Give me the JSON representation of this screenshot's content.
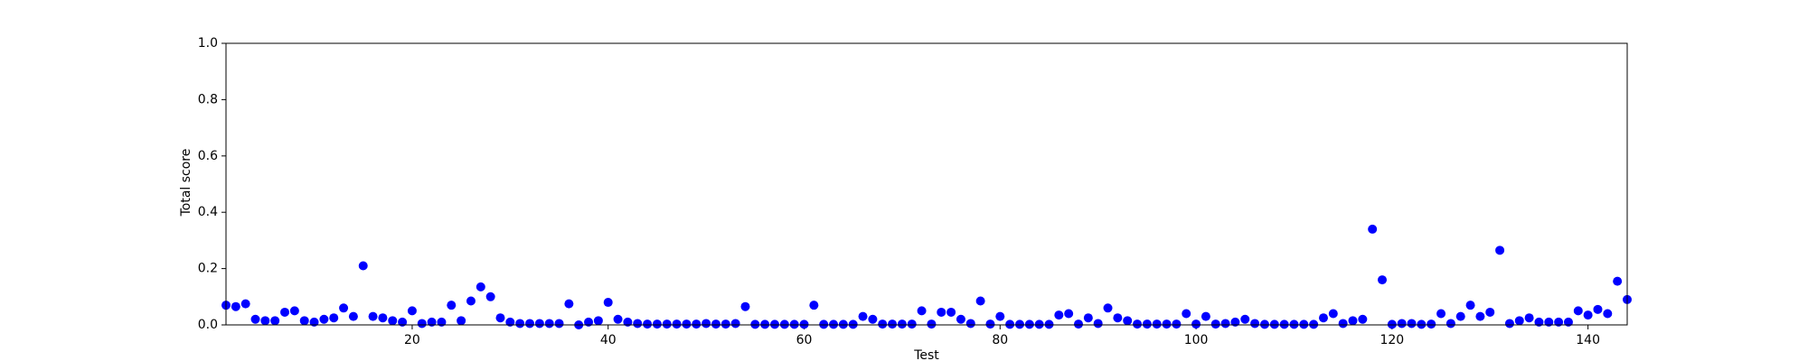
{
  "chart_data": {
    "type": "scatter",
    "xlabel": "Test",
    "ylabel": "Total score",
    "x": [
      1,
      2,
      3,
      4,
      5,
      6,
      7,
      8,
      9,
      10,
      11,
      12,
      13,
      14,
      15,
      16,
      17,
      18,
      19,
      20,
      21,
      22,
      23,
      24,
      25,
      26,
      27,
      28,
      29,
      30,
      31,
      32,
      33,
      34,
      35,
      36,
      37,
      38,
      39,
      40,
      41,
      42,
      43,
      44,
      45,
      46,
      47,
      48,
      49,
      50,
      51,
      52,
      53,
      54,
      55,
      56,
      57,
      58,
      59,
      60,
      61,
      62,
      63,
      64,
      65,
      66,
      67,
      68,
      69,
      70,
      71,
      72,
      73,
      74,
      75,
      76,
      77,
      78,
      79,
      80,
      81,
      82,
      83,
      84,
      85,
      86,
      87,
      88,
      89,
      90,
      91,
      92,
      93,
      94,
      95,
      96,
      97,
      98,
      99,
      100,
      101,
      102,
      103,
      104,
      105,
      106,
      107,
      108,
      109,
      110,
      111,
      112,
      113,
      114,
      115,
      116,
      117,
      118,
      119,
      120,
      121,
      122,
      123,
      124,
      125,
      126,
      127,
      128,
      129,
      130,
      131,
      132,
      133,
      134,
      135,
      136,
      137,
      138,
      139,
      140,
      141,
      142,
      143,
      144
    ],
    "series": [
      {
        "name": "Total score",
        "color": "#0000ff",
        "values": [
          0.07,
          0.065,
          0.075,
          0.02,
          0.015,
          0.015,
          0.045,
          0.05,
          0.015,
          0.01,
          0.02,
          0.025,
          0.06,
          0.03,
          0.21,
          0.03,
          0.025,
          0.015,
          0.01,
          0.05,
          0.005,
          0.01,
          0.01,
          0.07,
          0.015,
          0.085,
          0.135,
          0.1,
          0.025,
          0.01,
          0.005,
          0.005,
          0.005,
          0.005,
          0.005,
          0.075,
          0.0,
          0.01,
          0.015,
          0.08,
          0.02,
          0.01,
          0.005,
          0.003,
          0.003,
          0.003,
          0.003,
          0.003,
          0.003,
          0.005,
          0.003,
          0.003,
          0.005,
          0.065,
          0.002,
          0.002,
          0.002,
          0.002,
          0.002,
          0.002,
          0.07,
          0.002,
          0.002,
          0.002,
          0.002,
          0.03,
          0.02,
          0.003,
          0.003,
          0.003,
          0.003,
          0.05,
          0.003,
          0.045,
          0.045,
          0.02,
          0.005,
          0.085,
          0.003,
          0.03,
          0.002,
          0.002,
          0.002,
          0.002,
          0.002,
          0.035,
          0.04,
          0.003,
          0.025,
          0.005,
          0.06,
          0.025,
          0.015,
          0.003,
          0.003,
          0.003,
          0.003,
          0.003,
          0.04,
          0.003,
          0.03,
          0.003,
          0.005,
          0.01,
          0.02,
          0.005,
          0.002,
          0.002,
          0.002,
          0.002,
          0.002,
          0.002,
          0.025,
          0.04,
          0.005,
          0.015,
          0.02,
          0.34,
          0.16,
          0.002,
          0.005,
          0.005,
          0.002,
          0.003,
          0.04,
          0.005,
          0.03,
          0.07,
          0.03,
          0.045,
          0.265,
          0.005,
          0.015,
          0.025,
          0.01,
          0.01,
          0.01,
          0.01,
          0.05,
          0.035,
          0.055,
          0.04,
          0.155,
          0.09
        ]
      }
    ],
    "xlim": [
      1,
      144
    ],
    "xticks": [
      20,
      40,
      60,
      80,
      100,
      120,
      140
    ],
    "ylim": [
      0,
      1
    ],
    "yticks": [
      {
        "value": 0,
        "label": "0.0"
      },
      0.2,
      0.4,
      0.6,
      0.8,
      {
        "value": 1,
        "label": "1.0"
      }
    ],
    "grid": false
  }
}
